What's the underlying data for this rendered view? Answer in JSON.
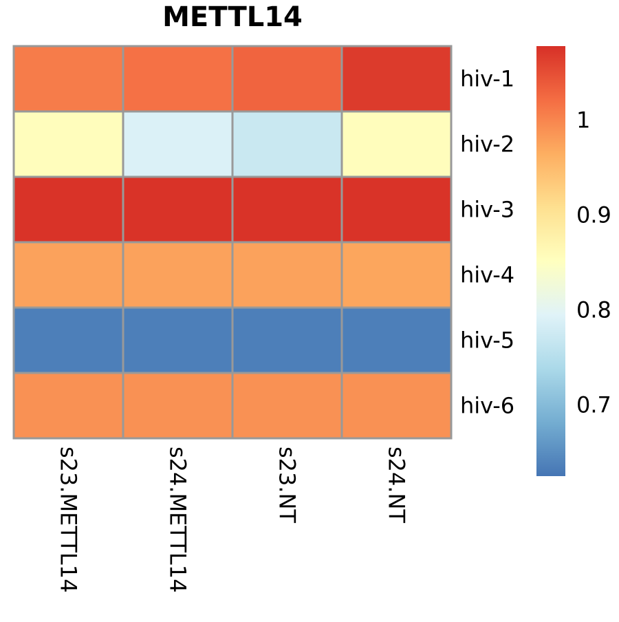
{
  "chart_data": {
    "type": "heatmap",
    "title": "METTL14",
    "rows": [
      "hiv-1",
      "hiv-2",
      "hiv-3",
      "hiv-4",
      "hiv-5",
      "hiv-6"
    ],
    "columns": [
      "s23.METTL14",
      "s24.METTL14",
      "s23.NT",
      "s24.NT"
    ],
    "values": [
      [
        1.008,
        1.018,
        1.03,
        1.068
      ],
      [
        0.855,
        0.79,
        0.77,
        0.855
      ],
      [
        1.075,
        1.075,
        1.075,
        1.075
      ],
      [
        0.975,
        0.975,
        0.975,
        0.972
      ],
      [
        0.635,
        0.635,
        0.635,
        0.635
      ],
      [
        0.99,
        0.99,
        0.99,
        0.99
      ]
    ],
    "colorbar": {
      "min": 0.625,
      "max": 1.078,
      "ticks": [
        "0.7",
        "0.8",
        "0.9",
        "1"
      ],
      "colors": [
        "#4575b4",
        "#74add1",
        "#abd9e9",
        "#e0f3f8",
        "#ffffbf",
        "#fee090",
        "#fdae61",
        "#f46d43",
        "#d73027"
      ]
    },
    "cell_border_color": "#999999"
  }
}
